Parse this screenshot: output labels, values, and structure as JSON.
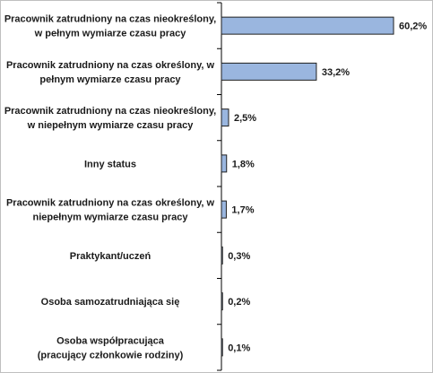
{
  "chart_data": {
    "type": "bar",
    "orientation": "horizontal",
    "title": "",
    "xlabel": "",
    "ylabel": "",
    "categories": [
      "Pracownik zatrudniony na czas nieokreślony,\nw pełnym wymiarze czasu pracy",
      "Pracownik zatrudniony na czas określony, w\npełnym wymiarze czasu pracy",
      "Pracownik zatrudniony na czas nieokreślony,\nw niepełnym wymiarze czasu pracy",
      "Inny status",
      "Pracownik zatrudniony na czas określony, w\nniepełnym wymiarze czasu pracy",
      "Praktykant/uczeń",
      "Osoba samozatrudniająca się",
      "Osoba współpracująca\n(pracujący członkowie rodziny)"
    ],
    "values": [
      60.2,
      33.2,
      2.5,
      1.8,
      1.7,
      0.3,
      0.2,
      0.1
    ],
    "value_labels": [
      "60,2%",
      "33,2%",
      "2,5%",
      "1,8%",
      "1,7%",
      "0,3%",
      "0,2%",
      "0,1%"
    ],
    "xlim": [
      0,
      70
    ],
    "grid": false,
    "legend": "none",
    "bar_color": "#9ab6df",
    "bar_edge_color": "#1f1f1f",
    "axis_color": "#000000"
  }
}
